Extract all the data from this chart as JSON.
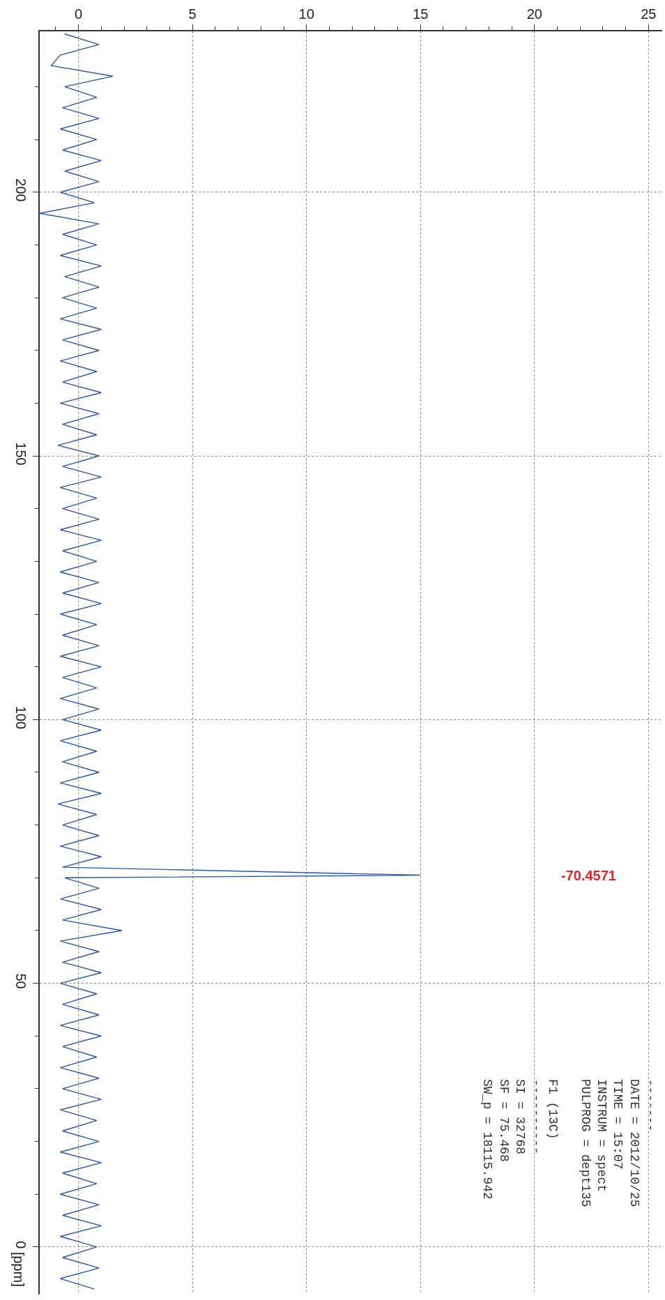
{
  "chart_data": {
    "type": "line",
    "ylabel": "[ppm]",
    "xlim": [
      -1.7,
      25.6
    ],
    "xticks": [
      0,
      5,
      10,
      15,
      20,
      25,
      {
        "value": -1,
        "label": null
      },
      {
        "value": 1,
        "label": null
      },
      {
        "value": 2,
        "label": null
      },
      {
        "value": 3,
        "label": null
      },
      {
        "value": 4,
        "label": null
      },
      {
        "value": 6,
        "label": null
      },
      {
        "value": 7,
        "label": null
      },
      {
        "value": 8,
        "label": null
      },
      {
        "value": 9,
        "label": null
      },
      {
        "value": 11,
        "label": null
      },
      {
        "value": 12,
        "label": null
      },
      {
        "value": 13,
        "label": null
      },
      {
        "value": 14,
        "label": null
      },
      {
        "value": 16,
        "label": null
      },
      {
        "value": 17,
        "label": null
      },
      {
        "value": 18,
        "label": null
      },
      {
        "value": 19,
        "label": null
      },
      {
        "value": 21,
        "label": null
      },
      {
        "value": 22,
        "label": null
      },
      {
        "value": 23,
        "label": null
      },
      {
        "value": 24,
        "label": null
      }
    ],
    "ylim": [
      -9,
      230.5
    ],
    "yticks": [
      0,
      50,
      100,
      150,
      200,
      {
        "value": 10,
        "label": null
      },
      {
        "value": 20,
        "label": null
      },
      {
        "value": 30,
        "label": null
      },
      {
        "value": 40,
        "label": null
      },
      {
        "value": 60,
        "label": null
      },
      {
        "value": 70,
        "label": null
      },
      {
        "value": 80,
        "label": null
      },
      {
        "value": 90,
        "label": null
      },
      {
        "value": 110,
        "label": null
      },
      {
        "value": 120,
        "label": null
      },
      {
        "value": 130,
        "label": null
      },
      {
        "value": 140,
        "label": null
      },
      {
        "value": 160,
        "label": null
      },
      {
        "value": 170,
        "label": null
      },
      {
        "value": 180,
        "label": null
      },
      {
        "value": 190,
        "label": null
      },
      {
        "value": 210,
        "label": null
      },
      {
        "value": 220,
        "label": null
      }
    ],
    "grid": true,
    "series": [
      {
        "color": "#2d55a0",
        "x": [
          -0.6,
          0.9,
          -0.8,
          -1.2,
          1.5,
          -0.6,
          0.8,
          -0.7,
          0.9,
          -0.8,
          0.8,
          -0.7,
          1.0,
          -0.6,
          0.9,
          -0.8,
          0.7,
          -1.7,
          0.9,
          -0.7,
          0.8,
          -0.8,
          1.0,
          -0.6,
          0.9,
          -0.7,
          0.8,
          -0.8,
          1.0,
          -0.7,
          0.9,
          -0.8,
          0.8,
          -0.7,
          1.0,
          -0.8,
          0.9,
          -0.7,
          0.8,
          -0.9,
          0.9,
          -0.7,
          1.0,
          -0.8,
          0.8,
          -0.7,
          0.9,
          -0.8,
          1.0,
          -0.7,
          0.8,
          -0.8,
          0.9,
          -0.7,
          1.0,
          -0.8,
          0.8,
          -0.7,
          0.9,
          -0.8,
          1.0,
          -0.7,
          0.8,
          -0.8,
          0.9,
          -0.7,
          1.0,
          -0.8,
          0.8,
          -0.7,
          0.9,
          -0.8,
          1.0,
          -0.9,
          0.8,
          -0.7,
          0.9,
          -0.8,
          1.0,
          -0.7,
          15,
          -0.6,
          0.9,
          -0.8,
          1.0,
          -0.7,
          1.9,
          -0.8,
          0.9,
          -0.7,
          1.0,
          -0.8,
          0.8,
          -0.7,
          0.9,
          -0.8,
          1.0,
          -0.7,
          0.8,
          -0.8,
          0.9,
          -0.7,
          1.0,
          -0.8,
          0.8,
          -0.7,
          0.9,
          -0.8,
          1.0,
          -0.7,
          0.8,
          -0.8,
          0.9,
          -0.7,
          1.0,
          -0.8,
          0.8,
          -0.7,
          0.9,
          -0.8,
          0.7
        ],
        "values": [
          230,
          228,
          226,
          224,
          222,
          220,
          218,
          216,
          214,
          212,
          210,
          208,
          206,
          204,
          202,
          200,
          198,
          196,
          194,
          192,
          190,
          188,
          186,
          184,
          182,
          180,
          178,
          176,
          174,
          172,
          170,
          168,
          166,
          164,
          162,
          160,
          158,
          156,
          154,
          152,
          150,
          148,
          146,
          144,
          142,
          140,
          138,
          136,
          134,
          132,
          130,
          128,
          126,
          124,
          122,
          120,
          118,
          116,
          114,
          112,
          110,
          108,
          106,
          104,
          102,
          100,
          98,
          96,
          94,
          92,
          90,
          88,
          86,
          84,
          82,
          80,
          78,
          76,
          74,
          72,
          70.5,
          70,
          68,
          66,
          64,
          62,
          60,
          58,
          56,
          54,
          52,
          50,
          48,
          46,
          44,
          42,
          40,
          38,
          36,
          34,
          32,
          30,
          28,
          26,
          24,
          22,
          20,
          18,
          16,
          14,
          12,
          10,
          8,
          6,
          4,
          2,
          0,
          -2,
          -4,
          -6,
          -8
        ]
      }
    ],
    "annotations": [
      "-70.4571",
      "-------\nDATE = 2012/10/25\nTIME = 15:07\nINSTRUM = spect\nPULPROG = dept135\n\nF1 (13C)\n----------\nSI = 32768\nSF = 75.468\nSW_p = 18115.942"
    ]
  }
}
